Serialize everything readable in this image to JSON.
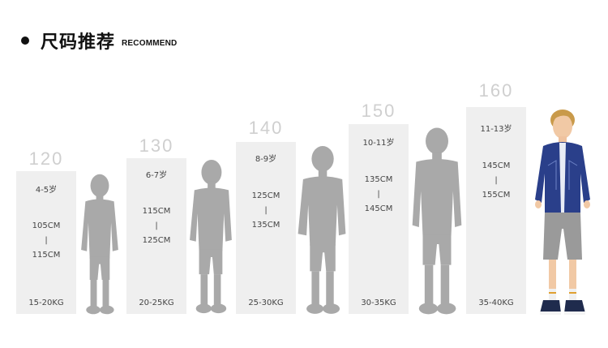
{
  "header": {
    "title": "尺码推荐",
    "subtitle": "RECOMMEND"
  },
  "sizes": [
    {
      "size": "120",
      "age": "4-5岁",
      "height_low": "105CM",
      "sep": "|",
      "height_high": "115CM",
      "weight": "15-20KG"
    },
    {
      "size": "130",
      "age": "6-7岁",
      "height_low": "115CM",
      "sep": "|",
      "height_high": "125CM",
      "weight": "20-25KG"
    },
    {
      "size": "140",
      "age": "8-9岁",
      "height_low": "125CM",
      "sep": "|",
      "height_high": "135CM",
      "weight": "25-30KG"
    },
    {
      "size": "150",
      "age": "10-11岁",
      "height_low": "135CM",
      "sep": "|",
      "height_high": "145CM",
      "weight": "30-35KG"
    },
    {
      "size": "160",
      "age": "11-13岁",
      "height_low": "145CM",
      "sep": "|",
      "height_high": "155CM",
      "weight": "35-40KG"
    }
  ],
  "colors": {
    "silhouette": "#a9a9a9",
    "card_bg": "#efefef",
    "size_label": "#cfcfcf",
    "jacket": "#2a3f8a",
    "shorts": "#9a9a9a"
  }
}
